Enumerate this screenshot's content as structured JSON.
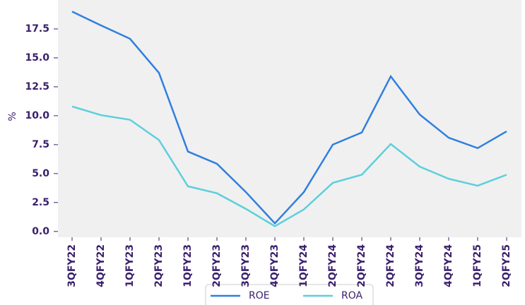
{
  "chart_data": {
    "type": "line",
    "categories": [
      "3QFY22",
      "4QFY22",
      "1QFY23",
      "2QFY23",
      "1QFY23",
      "2QFY23",
      "3QFY23",
      "4QFY23",
      "1QFY24",
      "2QFY24",
      "2QFY24",
      "2QFY24",
      "3QFY24",
      "4QFY24",
      "1QFY25",
      "2QFY25"
    ],
    "series": [
      {
        "name": "ROE",
        "color": "#2f7fe0",
        "values": [
          19.0,
          17.8,
          16.65,
          13.7,
          6.9,
          5.85,
          3.4,
          0.7,
          3.4,
          7.5,
          8.55,
          13.4,
          10.1,
          8.1,
          7.2,
          8.65
        ]
      },
      {
        "name": "ROA",
        "color": "#5ccfdc",
        "values": [
          10.8,
          10.05,
          9.65,
          7.9,
          3.9,
          3.3,
          1.95,
          0.45,
          1.9,
          4.2,
          4.9,
          7.55,
          5.6,
          4.55,
          3.95,
          4.9
        ]
      }
    ],
    "y_label": "%",
    "ylim": [
      -0.5,
      20
    ],
    "yticks": [
      {
        "value": 0,
        "label": "0.0"
      },
      2.5,
      {
        "value": 5,
        "label": "5.0"
      },
      7.5,
      {
        "value": 10,
        "label": "10.0"
      },
      12.5,
      {
        "value": 15,
        "label": "15.0"
      },
      17.5
    ],
    "legend": "bottom"
  }
}
